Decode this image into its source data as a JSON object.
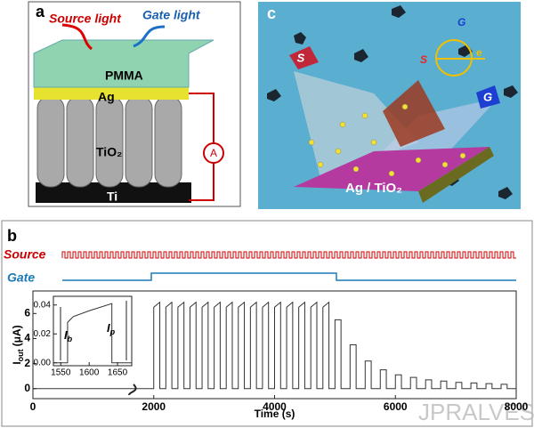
{
  "panel_a": {
    "label": "a",
    "source_light": "Source light",
    "gate_light": "Gate light",
    "pmma": "PMMA",
    "ag": "Ag",
    "tio2": "TiO₂",
    "ti": "Ti",
    "ammeter": "A"
  },
  "panel_c": {
    "label": "c",
    "s_large": "S",
    "g_large": "G",
    "s_small": "S",
    "g_small": "G",
    "electron": "e",
    "substrate": "Ag / TiO₂"
  },
  "panel_b": {
    "label": "b",
    "source_label": "Source",
    "gate_label": "Gate"
  },
  "chart_data": [
    {
      "type": "line",
      "xlabel": "Time (s)",
      "ylabel": [
        "I",
        "out",
        "(μA)"
      ],
      "xlim": [
        0,
        8000
      ],
      "ylim": [
        -0.8,
        7.8
      ],
      "xticks": [
        0,
        2000,
        4000,
        6000,
        8000
      ],
      "yticks": [
        0,
        2,
        4,
        6
      ],
      "series": [
        {
          "color": "#333333",
          "x": [
            0,
            2000,
            2000,
            2100,
            2100,
            2200,
            2200,
            2300,
            2300,
            2400,
            2400,
            2500,
            2500,
            2600,
            2600,
            2700,
            2700,
            2800,
            2800,
            2900,
            2900,
            3000,
            3000,
            3100,
            3100,
            3200,
            3200,
            3300,
            3300,
            3400,
            3400,
            3500,
            3500,
            3600,
            3600,
            3700,
            3700,
            3800,
            3800,
            3900,
            3900,
            4000,
            4000,
            4100,
            4100,
            4200,
            4200,
            4300,
            4300,
            4400,
            4400,
            4500,
            4500,
            4600,
            4600,
            4700,
            4700,
            4800,
            4800,
            4900,
            4900,
            5000,
            5000,
            5100,
            5100,
            5250,
            5250,
            5350,
            5350,
            5500,
            5500,
            5600,
            5600,
            5750,
            5750,
            5850,
            5850,
            6000,
            6000,
            6100,
            6100,
            6250,
            6250,
            6350,
            6350,
            6500,
            6500,
            6600,
            6600,
            6750,
            6750,
            6850,
            6850,
            7000,
            7000,
            7100,
            7100,
            7250,
            7250,
            7350,
            7350,
            7500,
            7500,
            7600,
            7600,
            7750,
            7750,
            7850,
            7850,
            8000
          ],
          "values": [
            0,
            0,
            6.5,
            6.9,
            0,
            0,
            6.5,
            6.9,
            0,
            0,
            6.5,
            6.9,
            0,
            0,
            6.5,
            6.9,
            0,
            0,
            6.5,
            6.9,
            0,
            0,
            6.5,
            6.9,
            0,
            0,
            6.5,
            6.9,
            0,
            0,
            6.5,
            6.9,
            0,
            0,
            6.5,
            6.9,
            0,
            0,
            6.5,
            6.9,
            0,
            0,
            6.5,
            6.9,
            0,
            0,
            6.5,
            6.9,
            0,
            0,
            6.5,
            6.9,
            0,
            0,
            6.5,
            6.9,
            0,
            0,
            6.5,
            6.9,
            0,
            0,
            5.5,
            5.5,
            0,
            0,
            3.5,
            3.5,
            0,
            0,
            2.2,
            2.2,
            0,
            0,
            1.5,
            1.5,
            0,
            0,
            1.1,
            1.1,
            0,
            0,
            0.9,
            0.9,
            0,
            0,
            0.7,
            0.7,
            0,
            0,
            0.6,
            0.6,
            0,
            0,
            0.5,
            0.5,
            0,
            0,
            0.45,
            0.45,
            0,
            0,
            0.4,
            0.4,
            0,
            0,
            0.35,
            0.35,
            0,
            0
          ]
        }
      ]
    },
    {
      "type": "line",
      "xlim": [
        1537,
        1675
      ],
      "ylim": [
        -0.002,
        0.046
      ],
      "xticks": [
        1550,
        1600,
        1650
      ],
      "yticks": [
        {
          "value": 0,
          "label": "0.00"
        },
        {
          "value": 0.02,
          "label": "0.02"
        },
        {
          "value": 0.04,
          "label": "0.04"
        }
      ],
      "annotations": [
        [
          "I",
          "b"
        ],
        [
          "I",
          "p"
        ]
      ],
      "series": [
        {
          "color": "#333333",
          "x": [
            1537,
            1562,
            1562,
            1572,
            1600,
            1640,
            1640,
            1675
          ],
          "values": [
            0,
            0,
            0.028,
            0.032,
            0.036,
            0.041,
            0,
            0
          ]
        }
      ]
    }
  ],
  "watermark": "JPRALVES.NET"
}
